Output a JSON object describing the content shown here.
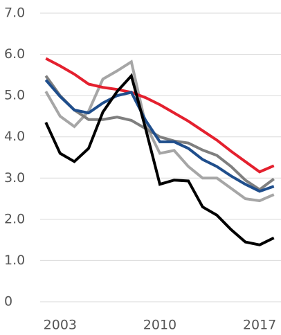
{
  "chart_data": {
    "type": "line",
    "x": [
      2002,
      2003,
      2004,
      2005,
      2006,
      2007,
      2008,
      2009,
      2010,
      2011,
      2012,
      2013,
      2014,
      2015,
      2016,
      2017,
      2018
    ],
    "xlim": [
      2001.6,
      2018.5
    ],
    "xticks": [
      2003,
      2010,
      2017
    ],
    "ylim": [
      0,
      7
    ],
    "yticks": [
      0,
      {
        "value": 1,
        "label": "1.0"
      },
      {
        "value": 2,
        "label": "2.0"
      },
      {
        "value": 3,
        "label": "3.0"
      },
      {
        "value": 4,
        "label": "4.0"
      },
      {
        "value": 5,
        "label": "5.0"
      },
      {
        "value": 6,
        "label": "6.0"
      },
      {
        "value": 7,
        "label": "7.0"
      }
    ],
    "grid": true,
    "series": [
      {
        "color": "#a6a6a6",
        "values": [
          5.1,
          4.5,
          4.25,
          4.62,
          5.4,
          5.6,
          5.82,
          4.3,
          3.6,
          3.67,
          3.28,
          3.0,
          3.0,
          2.75,
          2.5,
          2.45,
          2.6
        ]
      },
      {
        "color": "#7f7f7f",
        "values": [
          5.48,
          5.0,
          4.65,
          4.42,
          4.42,
          4.48,
          4.4,
          4.2,
          4.0,
          3.9,
          3.85,
          3.68,
          3.55,
          3.28,
          2.95,
          2.72,
          2.98
        ]
      },
      {
        "color": "#e4202e",
        "values": [
          5.9,
          5.72,
          5.52,
          5.28,
          5.2,
          5.15,
          5.08,
          4.95,
          4.78,
          4.58,
          4.38,
          4.15,
          3.92,
          3.65,
          3.4,
          3.15,
          3.3
        ]
      },
      {
        "color": "#1f4e8c",
        "values": [
          5.38,
          4.98,
          4.65,
          4.58,
          4.82,
          5.0,
          5.08,
          4.4,
          3.88,
          3.88,
          3.72,
          3.45,
          3.28,
          3.05,
          2.85,
          2.68,
          2.8
        ]
      },
      {
        "color": "#000000",
        "values": [
          4.35,
          3.6,
          3.4,
          3.72,
          4.6,
          5.1,
          5.48,
          4.2,
          2.85,
          2.95,
          2.93,
          2.3,
          2.1,
          1.75,
          1.45,
          1.38,
          1.55
        ]
      }
    ]
  }
}
